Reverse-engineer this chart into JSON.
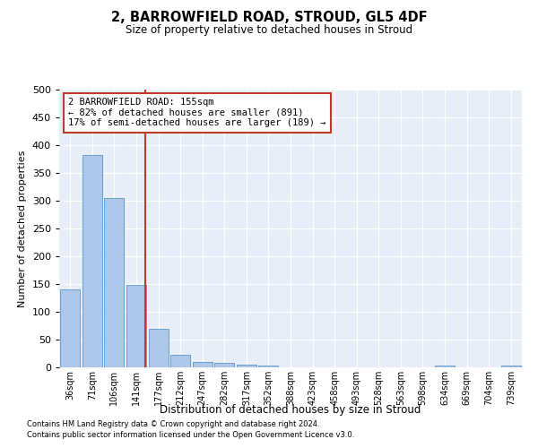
{
  "title1": "2, BARROWFIELD ROAD, STROUD, GL5 4DF",
  "title2": "Size of property relative to detached houses in Stroud",
  "xlabel": "Distribution of detached houses by size in Stroud",
  "ylabel": "Number of detached properties",
  "bar_labels": [
    "36sqm",
    "71sqm",
    "106sqm",
    "141sqm",
    "177sqm",
    "212sqm",
    "247sqm",
    "282sqm",
    "317sqm",
    "352sqm",
    "388sqm",
    "423sqm",
    "458sqm",
    "493sqm",
    "528sqm",
    "563sqm",
    "598sqm",
    "634sqm",
    "669sqm",
    "704sqm",
    "739sqm"
  ],
  "bar_values": [
    140,
    383,
    305,
    148,
    70,
    22,
    10,
    8,
    5,
    3,
    0,
    0,
    0,
    0,
    0,
    0,
    0,
    4,
    0,
    0,
    4
  ],
  "bar_color": "#aec6e8",
  "bar_edge_color": "#5a96c8",
  "vline_x": 3.4,
  "vline_color": "#c0392b",
  "ylim": [
    0,
    500
  ],
  "yticks": [
    0,
    50,
    100,
    150,
    200,
    250,
    300,
    350,
    400,
    450,
    500
  ],
  "annotation_text": "2 BARROWFIELD ROAD: 155sqm\n← 82% of detached houses are smaller (891)\n17% of semi-detached houses are larger (189) →",
  "annotation_box_color": "#c0392b",
  "footnote1": "Contains HM Land Registry data © Crown copyright and database right 2024.",
  "footnote2": "Contains public sector information licensed under the Open Government Licence v3.0.",
  "bg_color": "#e8eef7"
}
